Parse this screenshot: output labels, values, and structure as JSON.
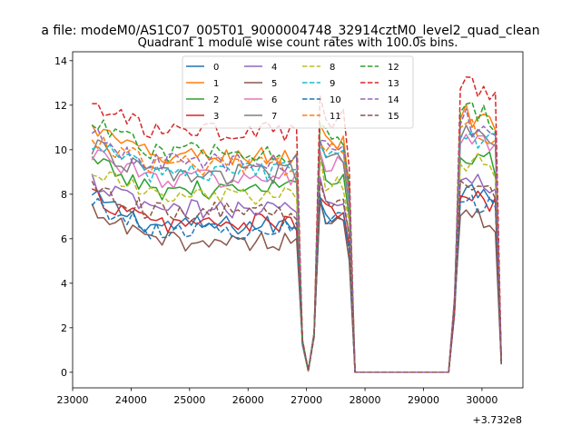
{
  "figure": {
    "suptitle": "a file: modeM0/AS1C07_005T01_9000004748_32914cztM0_level2_quad_clean",
    "title": "Quadrant 1 module wise count rates with 100.0s bins.",
    "x_offset_label": "+3.732e8"
  },
  "chart_data": {
    "type": "line",
    "title": "Quadrant 1 module wise count rates with 100.0s bins.",
    "x_offset": "+3.732e8",
    "xlim": [
      23000,
      30700
    ],
    "ylim": [
      -0.7,
      14.4
    ],
    "x_ticks": [
      23000,
      24000,
      25000,
      26000,
      27000,
      28000,
      29000,
      30000
    ],
    "y_ticks": [
      0,
      2,
      4,
      6,
      8,
      10,
      12,
      14
    ],
    "grid": false,
    "legend": {
      "placement": "upper-center",
      "columns": 4
    },
    "shape": {
      "x_start": 23330,
      "step": 100,
      "dip1": [
        26930,
        27030,
        27130
      ],
      "dip2": [
        27730,
        27830
      ],
      "zero_end": 29430,
      "late_ramp": [
        29530,
        29630
      ],
      "last_bin": 30330
    },
    "series": [
      {
        "name": "0",
        "color": "#1f77b4",
        "dash": "solid",
        "level": 6.6,
        "drop_value": 0.0
      },
      {
        "name": "1",
        "color": "#ff7f0e",
        "dash": "solid",
        "level": 9.7,
        "drop_value": 0.0
      },
      {
        "name": "2",
        "color": "#2ca02c",
        "dash": "solid",
        "level": 8.2,
        "drop_value": 0.0
      },
      {
        "name": "3",
        "color": "#d62728",
        "dash": "solid",
        "level": 6.7,
        "drop_value": 0.0
      },
      {
        "name": "4",
        "color": "#9467bd",
        "dash": "solid",
        "level": 7.3,
        "drop_value": 0.0
      },
      {
        "name": "5",
        "color": "#8c564b",
        "dash": "solid",
        "level": 5.9,
        "drop_value": 0.0
      },
      {
        "name": "6",
        "color": "#e377c2",
        "dash": "solid",
        "level": 8.7,
        "drop_value": 0.0
      },
      {
        "name": "7",
        "color": "#7f7f7f",
        "dash": "solid",
        "level": 8.9,
        "drop_value": 0.0
      },
      {
        "name": "8",
        "color": "#bcbd22",
        "dash": "dashed",
        "level": 7.9,
        "drop_value": 0.0
      },
      {
        "name": "9",
        "color": "#17becf",
        "dash": "dashed",
        "level": 9.0,
        "drop_value": 0.0
      },
      {
        "name": "10",
        "color": "#1f77b4",
        "dash": "dashed",
        "level": 6.4,
        "drop_value": 0.0
      },
      {
        "name": "11",
        "color": "#ff7f0e",
        "dash": "dashed",
        "level": 9.3,
        "drop_value": 0.0
      },
      {
        "name": "12",
        "color": "#2ca02c",
        "dash": "dashed",
        "level": 9.9,
        "drop_value": 0.0
      },
      {
        "name": "13",
        "color": "#d62728",
        "dash": "dashed",
        "level": 10.8,
        "drop_value": 0.0
      },
      {
        "name": "14",
        "color": "#9467bd",
        "dash": "dashed",
        "level": 9.4,
        "drop_value": 0.0
      },
      {
        "name": "15",
        "color": "#8c564b",
        "dash": "dashed",
        "level": 7.2,
        "drop_value": 0.0
      }
    ]
  }
}
